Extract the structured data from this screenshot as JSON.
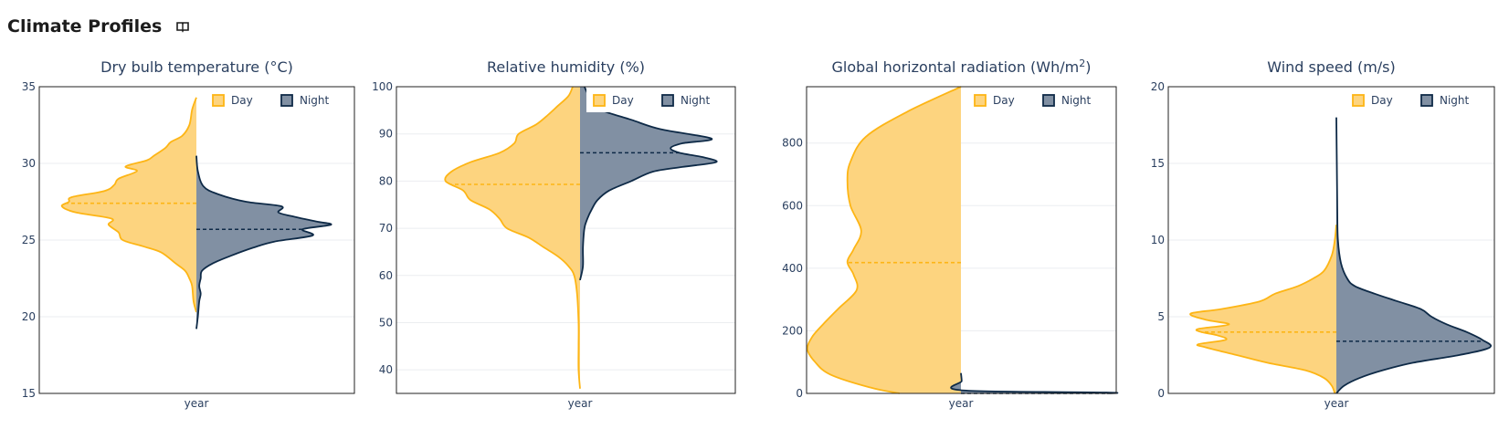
{
  "header": {
    "title": "Climate Profiles",
    "info_icon": "book-icon"
  },
  "colors": {
    "day": "#fdb515",
    "day_fill": "#fdd47f",
    "night": "#0e2a47",
    "night_fill": "#8190a3"
  },
  "chart_data": [
    {
      "type": "violin",
      "title": "Dry bulb temperature (°C)",
      "xlabel": "year",
      "ylim": [
        15,
        35
      ],
      "yticks": [
        "35",
        "30",
        "25",
        "20",
        "15"
      ],
      "legend": [
        "Day",
        "Night"
      ],
      "legend_position": "top-right",
      "series": [
        {
          "name": "Day",
          "side": "left",
          "mean": 27.4,
          "profile": [
            [
              34.3,
              0
            ],
            [
              33.5,
              0.03
            ],
            [
              32.5,
              0.05
            ],
            [
              31.8,
              0.1
            ],
            [
              31.4,
              0.18
            ],
            [
              31.0,
              0.22
            ],
            [
              30.5,
              0.3
            ],
            [
              30.2,
              0.35
            ],
            [
              29.8,
              0.5
            ],
            [
              29.5,
              0.42
            ],
            [
              29.0,
              0.55
            ],
            [
              28.6,
              0.58
            ],
            [
              28.2,
              0.65
            ],
            [
              27.8,
              0.88
            ],
            [
              27.5,
              0.9
            ],
            [
              27.2,
              0.95
            ],
            [
              26.8,
              0.85
            ],
            [
              26.4,
              0.6
            ],
            [
              26.0,
              0.62
            ],
            [
              25.5,
              0.55
            ],
            [
              25.0,
              0.52
            ],
            [
              24.6,
              0.38
            ],
            [
              24.2,
              0.25
            ],
            [
              23.5,
              0.15
            ],
            [
              23.0,
              0.08
            ],
            [
              22.5,
              0.05
            ],
            [
              22.0,
              0.03
            ],
            [
              21.0,
              0.02
            ],
            [
              20.3,
              0
            ]
          ]
        },
        {
          "name": "Night",
          "side": "right",
          "mean": 25.7,
          "profile": [
            [
              30.5,
              0
            ],
            [
              29.5,
              0.01
            ],
            [
              28.5,
              0.05
            ],
            [
              28.0,
              0.15
            ],
            [
              27.5,
              0.35
            ],
            [
              27.2,
              0.6
            ],
            [
              26.8,
              0.58
            ],
            [
              26.5,
              0.7
            ],
            [
              26.2,
              0.85
            ],
            [
              26.0,
              0.95
            ],
            [
              25.7,
              0.75
            ],
            [
              25.3,
              0.82
            ],
            [
              24.9,
              0.55
            ],
            [
              24.5,
              0.4
            ],
            [
              24.0,
              0.25
            ],
            [
              23.5,
              0.12
            ],
            [
              23.0,
              0.04
            ],
            [
              22.5,
              0.03
            ],
            [
              22.0,
              0.02
            ],
            [
              21.5,
              0.03
            ],
            [
              21.0,
              0.02
            ],
            [
              20.0,
              0.01
            ],
            [
              19.2,
              0
            ]
          ]
        }
      ]
    },
    {
      "type": "violin",
      "title": "Relative humidity (%)",
      "xlabel": "year",
      "ylim": [
        35,
        100
      ],
      "yticks": [
        "100",
        "90",
        "80",
        "70",
        "60",
        "50",
        "40"
      ],
      "legend": [
        "Day",
        "Night"
      ],
      "legend_position": "top-right",
      "series": [
        {
          "name": "Day",
          "side": "left",
          "mean": 79.3,
          "profile": [
            [
              100,
              0.05
            ],
            [
              98,
              0.08
            ],
            [
              96,
              0.15
            ],
            [
              94,
              0.22
            ],
            [
              92,
              0.3
            ],
            [
              90,
              0.42
            ],
            [
              88,
              0.45
            ],
            [
              86,
              0.55
            ],
            [
              84,
              0.75
            ],
            [
              82,
              0.88
            ],
            [
              80,
              0.92
            ],
            [
              78,
              0.8
            ],
            [
              76,
              0.75
            ],
            [
              74,
              0.62
            ],
            [
              72,
              0.55
            ],
            [
              70,
              0.5
            ],
            [
              68,
              0.35
            ],
            [
              66,
              0.25
            ],
            [
              64,
              0.15
            ],
            [
              62,
              0.08
            ],
            [
              60,
              0.04
            ],
            [
              56,
              0.02
            ],
            [
              50,
              0.01
            ],
            [
              45,
              0.01
            ],
            [
              40,
              0.01
            ],
            [
              36,
              0
            ]
          ]
        },
        {
          "name": "Night",
          "side": "right",
          "mean": 86,
          "profile": [
            [
              100,
              0.03
            ],
            [
              97,
              0.08
            ],
            [
              95,
              0.15
            ],
            [
              93,
              0.35
            ],
            [
              91,
              0.55
            ],
            [
              89,
              0.9
            ],
            [
              88,
              0.7
            ],
            [
              87,
              0.62
            ],
            [
              86,
              0.68
            ],
            [
              85,
              0.85
            ],
            [
              84,
              0.93
            ],
            [
              83,
              0.7
            ],
            [
              82,
              0.5
            ],
            [
              80,
              0.35
            ],
            [
              78,
              0.2
            ],
            [
              76,
              0.12
            ],
            [
              74,
              0.08
            ],
            [
              72,
              0.05
            ],
            [
              70,
              0.03
            ],
            [
              66,
              0.02
            ],
            [
              62,
              0.02
            ],
            [
              59,
              0
            ]
          ]
        }
      ]
    },
    {
      "type": "violin",
      "title": "Global horizontal radiation (Wh/m²)",
      "title_main": "Global horizontal radiation (Wh/m",
      "title_sup": "2",
      "title_end": ")",
      "xlabel": "year",
      "ylim": [
        0,
        980
      ],
      "yticks": [
        "800",
        "600",
        "400",
        "200",
        "0"
      ],
      "legend": [
        "Day",
        "Night"
      ],
      "legend_position": "top-right",
      "series": [
        {
          "name": "Day",
          "side": "left",
          "mean": 418,
          "profile": [
            [
              980,
              0
            ],
            [
              900,
              0.35
            ],
            [
              820,
              0.62
            ],
            [
              740,
              0.72
            ],
            [
              680,
              0.74
            ],
            [
              600,
              0.72
            ],
            [
              520,
              0.65
            ],
            [
              460,
              0.7
            ],
            [
              420,
              0.74
            ],
            [
              380,
              0.7
            ],
            [
              330,
              0.68
            ],
            [
              270,
              0.8
            ],
            [
              220,
              0.9
            ],
            [
              180,
              0.97
            ],
            [
              140,
              1.0
            ],
            [
              100,
              0.95
            ],
            [
              60,
              0.85
            ],
            [
              20,
              0.6
            ],
            [
              0,
              0.4
            ]
          ]
        },
        {
          "name": "Night",
          "side": "right",
          "mean": 0,
          "profile": [
            [
              65,
              0
            ],
            [
              40,
              0.005
            ],
            [
              10,
              0.005
            ],
            [
              3,
              0.95
            ],
            [
              0,
              0.95
            ]
          ]
        }
      ]
    },
    {
      "type": "violin",
      "title": "Wind speed (m/s)",
      "xlabel": "year",
      "ylim": [
        0,
        20
      ],
      "yticks": [
        "20",
        "15",
        "10",
        "5",
        "0"
      ],
      "legend": [
        "Day",
        "Night"
      ],
      "legend_position": "top-right",
      "series": [
        {
          "name": "Day",
          "side": "left",
          "mean": 4.0,
          "profile": [
            [
              11.0,
              0
            ],
            [
              10.0,
              0.01
            ],
            [
              9.0,
              0.03
            ],
            [
              8.0,
              0.08
            ],
            [
              7.5,
              0.15
            ],
            [
              7.0,
              0.25
            ],
            [
              6.5,
              0.4
            ],
            [
              6.0,
              0.5
            ],
            [
              5.5,
              0.75
            ],
            [
              5.2,
              0.95
            ],
            [
              4.8,
              0.85
            ],
            [
              4.5,
              0.7
            ],
            [
              4.2,
              0.9
            ],
            [
              4.0,
              0.88
            ],
            [
              3.8,
              0.78
            ],
            [
              3.5,
              0.72
            ],
            [
              3.2,
              0.9
            ],
            [
              3.0,
              0.85
            ],
            [
              2.5,
              0.65
            ],
            [
              2.0,
              0.45
            ],
            [
              1.5,
              0.2
            ],
            [
              1.0,
              0.08
            ],
            [
              0.5,
              0.03
            ],
            [
              0,
              0.01
            ]
          ]
        },
        {
          "name": "Night",
          "side": "right",
          "mean": 3.4,
          "profile": [
            [
              18.0,
              0
            ],
            [
              15.0,
              0.003
            ],
            [
              12.0,
              0.006
            ],
            [
              10.0,
              0.01
            ],
            [
              8.5,
              0.03
            ],
            [
              7.5,
              0.07
            ],
            [
              7.0,
              0.12
            ],
            [
              6.5,
              0.25
            ],
            [
              6.0,
              0.4
            ],
            [
              5.5,
              0.55
            ],
            [
              5.0,
              0.62
            ],
            [
              4.5,
              0.72
            ],
            [
              4.0,
              0.85
            ],
            [
              3.5,
              0.95
            ],
            [
              3.0,
              1.0
            ],
            [
              2.5,
              0.8
            ],
            [
              2.0,
              0.5
            ],
            [
              1.5,
              0.3
            ],
            [
              1.0,
              0.15
            ],
            [
              0.5,
              0.05
            ],
            [
              0,
              0
            ]
          ]
        }
      ]
    }
  ]
}
